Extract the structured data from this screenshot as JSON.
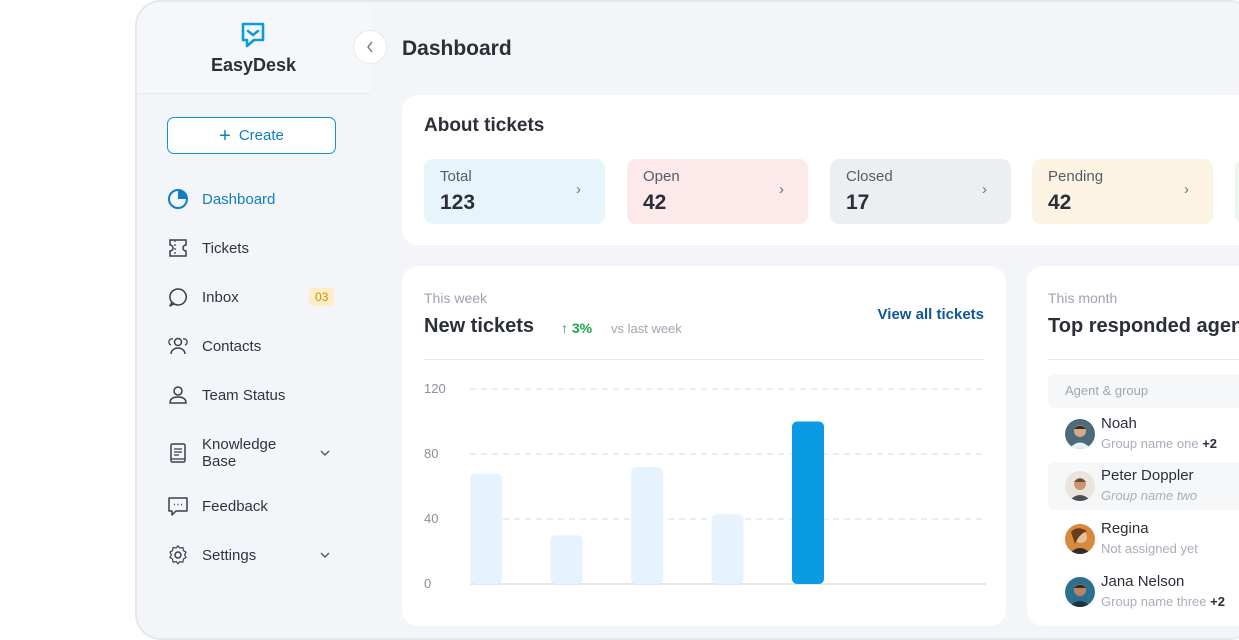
{
  "app": {
    "name": "EasyDesk",
    "page_title": "Dashboard"
  },
  "sidebar": {
    "create_label": "Create",
    "items": [
      {
        "label": "Dashboard",
        "icon": "pie-chart-icon",
        "active": true
      },
      {
        "label": "Tickets",
        "icon": "ticket-icon"
      },
      {
        "label": "Inbox",
        "icon": "chat-bubble-icon",
        "badge": "03"
      },
      {
        "label": "Contacts",
        "icon": "contacts-icon"
      },
      {
        "label": "Team Status",
        "icon": "user-icon"
      },
      {
        "label": "Knowledge Base",
        "label_line1": "Knowledge",
        "label_line2": "Base",
        "icon": "book-icon",
        "expandable": true
      },
      {
        "label": "Feedback",
        "icon": "feedback-icon"
      },
      {
        "label": "Settings",
        "icon": "gear-icon",
        "expandable": true
      }
    ]
  },
  "about": {
    "title": "About tickets",
    "stats": [
      {
        "label": "Total",
        "value": "123",
        "color": "#e8f4fc"
      },
      {
        "label": "Open",
        "value": "42",
        "color": "#fde8ea"
      },
      {
        "label": "Closed",
        "value": "17",
        "color": "#eceef1"
      },
      {
        "label": "Pending",
        "value": "42",
        "color": "#fdf3e3"
      }
    ]
  },
  "weekly": {
    "subtitle": "This week",
    "title": "New tickets",
    "trend": "3%",
    "trend_note": "vs last week",
    "view_all": "View all tickets"
  },
  "chart_data": {
    "type": "bar",
    "y_ticks": [
      "120",
      "80",
      "40",
      "0"
    ],
    "ylim": [
      0,
      120
    ],
    "values": [
      68,
      30,
      72,
      43,
      100
    ],
    "highlight_index": 4,
    "colors": {
      "bar": "#e7f3fc",
      "highlight": "#0b9be2",
      "grid": "#d5d9df"
    }
  },
  "monthly": {
    "subtitle": "This month",
    "title": "Top responded agents",
    "column_header": "Agent & group",
    "agents": [
      {
        "name": "Noah",
        "group": "Group name one",
        "extra": "+2",
        "italic": false
      },
      {
        "name": "Peter Doppler",
        "group": "Group name two",
        "extra": "",
        "italic": true
      },
      {
        "name": "Regina",
        "group": "Not assigned yet",
        "extra": "",
        "italic": false
      },
      {
        "name": "Jana Nelson",
        "group": "Group name three",
        "extra": "+2",
        "italic": false
      }
    ]
  },
  "colors": {
    "accent": "#0e7fc1",
    "link": "#10579a",
    "trend": "#18a94c"
  }
}
